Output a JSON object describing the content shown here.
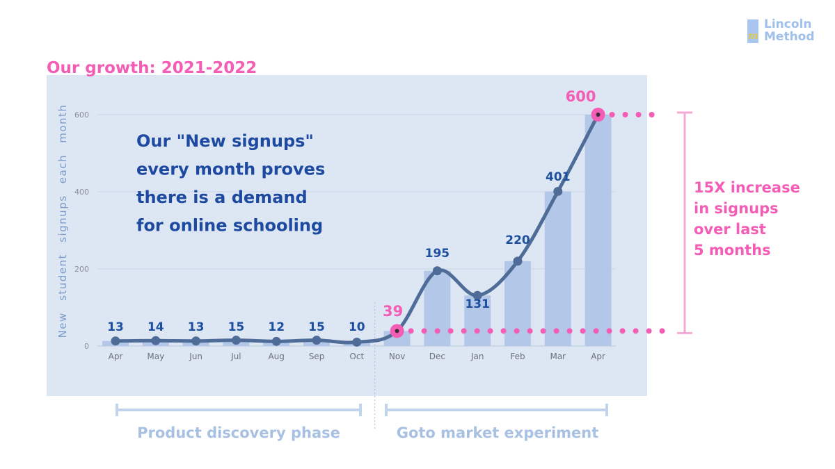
{
  "heading": "Our growth: 2021-2022",
  "logo": {
    "line1": "Lincoln",
    "line2": "Method",
    "mark_letter": "m"
  },
  "annotation": [
    "Our \"New signups\"",
    "every month proves",
    "there is a demand",
    "for online schooling"
  ],
  "callout": [
    "15X increase",
    "in signups",
    "over last",
    "5 months"
  ],
  "phases": [
    {
      "label": "Product discovery phase",
      "from": "Apr",
      "to": "Oct"
    },
    {
      "label": "Goto market experiment",
      "from": "Nov",
      "to": "Apr"
    }
  ],
  "highlights": [
    {
      "label": "39",
      "index": 7
    },
    {
      "label": "600",
      "index": 12
    }
  ],
  "colors": {
    "accent_pink": "#f45db5",
    "plot_bg": "#dde6f3",
    "bar": "#b3c8e8",
    "line": "#4e6c97",
    "value_label": "#1c4fa0",
    "phase": "#c2d3ec"
  },
  "chart_data": {
    "type": "bar",
    "categories": [
      "Apr",
      "May",
      "Jun",
      "Jul",
      "Aug",
      "Sep",
      "Oct",
      "Nov",
      "Dec",
      "Jan",
      "Feb",
      "Mar",
      "Apr"
    ],
    "series": [
      {
        "values": [
          13,
          14,
          13,
          15,
          12,
          15,
          10,
          39,
          195,
          131,
          220,
          401,
          600
        ]
      }
    ],
    "overlay": "smoothed line through the bar values",
    "data_labels": [
      "13",
      "14",
      "13",
      "15",
      "12",
      "15",
      "10",
      "39",
      "195",
      "131",
      "220",
      "401",
      "600"
    ],
    "ylabel": "New student signups each month",
    "yticks": [
      0,
      200,
      400,
      600
    ],
    "ylim": [
      0,
      600
    ],
    "grid": true
  }
}
